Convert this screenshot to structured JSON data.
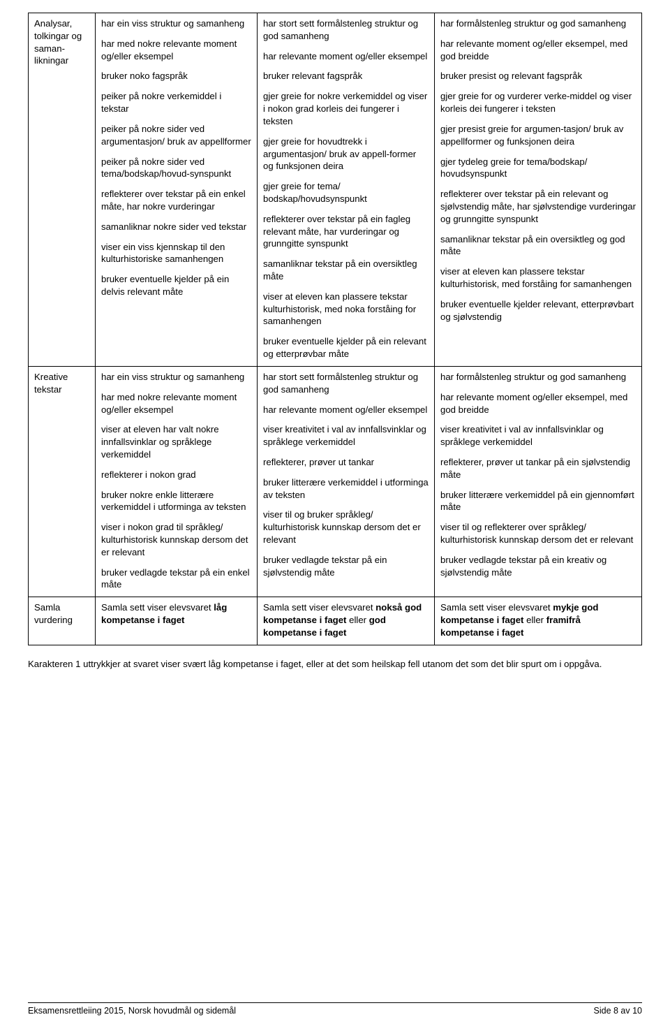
{
  "rows": [
    {
      "label": "Analysar, tolkingar og saman-likningar",
      "col1": [
        "har ein viss struktur og samanheng",
        "har med nokre relevante moment og/eller eksempel",
        "bruker noko fagspråk",
        "peiker på nokre verkemiddel i tekstar",
        "peiker på nokre sider ved argumentasjon/ bruk av appellformer",
        "peiker på nokre sider ved tema/bodskap/hovud-synspunkt",
        "reflekterer over tekstar på ein enkel måte, har nokre vurderingar",
        "samanliknar nokre sider ved tekstar",
        "viser ein viss kjennskap til den kulturhistoriske samanhengen",
        "bruker eventuelle kjelder på ein delvis relevant måte"
      ],
      "col2": [
        "har stort sett formålstenleg struktur og god samanheng",
        "har relevante moment og/eller eksempel",
        "bruker relevant fagspråk",
        "gjer greie for nokre verkemiddel og viser i  nokon grad korleis dei fungerer i teksten",
        "gjer greie for hovudtrekk i argumentasjon/ bruk av appell-former og funksjonen deira",
        "gjer greie for tema/ bodskap/hovudsynspunkt",
        "reflekterer over tekstar på ein fagleg relevant måte, har vurderingar og grunngitte synspunkt",
        "samanliknar tekstar på ein oversiktleg måte",
        "viser at eleven kan plassere tekstar kulturhistorisk, med noka forståing for samanhengen",
        "bruker eventuelle kjelder på ein relevant og etterprøvbar  måte"
      ],
      "col3": [
        "har formålstenleg struktur og god samanheng",
        "har relevante moment og/eller eksempel, med god breidde",
        "bruker presist og relevant fagspråk",
        "gjer greie for og vurderer verke-middel og viser korleis dei fungerer i teksten",
        "gjer presist greie for argumen-tasjon/ bruk av appellformer og funksjonen deira",
        "gjer tydeleg greie for tema/bodskap/ hovudsynspunkt",
        "reflekterer over tekstar på ein relevant og sjølvstendig måte, har sjølvstendige vurderingar og grunngitte synspunkt",
        "samanliknar tekstar på ein oversiktleg og god måte",
        "viser at eleven kan plassere tekstar kulturhistorisk, med forståing for samanhengen",
        "bruker eventuelle kjelder relevant, etterprøvbart og sjølvstendig"
      ]
    },
    {
      "label": "Kreative tekstar",
      "col1": [
        "har ein viss struktur og samanheng",
        "har med nokre relevante moment og/eller eksempel",
        "viser at eleven har valt nokre innfallsvinklar og språklege verkemiddel",
        "reflekterer i nokon grad",
        "bruker nokre enkle litterære verkemiddel i utforminga av teksten",
        "viser i nokon grad til språkleg/ kulturhistorisk kunnskap dersom det er relevant",
        "bruker vedlagde tekstar på ein enkel måte"
      ],
      "col2": [
        "har stort sett formålstenleg struktur og god samanheng",
        "har relevante moment og/eller eksempel",
        "viser kreativitet i val av innfallsvinklar og språklege verkemiddel",
        "reflekterer, prøver ut tankar",
        "bruker litterære verkemiddel i utforminga av teksten",
        "viser til og bruker språkleg/ kulturhistorisk kunnskap dersom det er relevant",
        "bruker vedlagde tekstar på ein sjølvstendig måte"
      ],
      "col3": [
        "har formålstenleg struktur og god samanheng",
        "har relevante moment og/eller eksempel, med god breidde",
        "viser kreativitet i val av innfallsvinklar og språklege verkemiddel",
        "reflekterer, prøver ut tankar på ein sjølvstendig måte",
        "bruker litterære verkemiddel på ein gjennomført måte",
        "viser til og reflekterer over språkleg/ kulturhistorisk kunnskap dersom det er relevant",
        "bruker vedlagde tekstar på ein kreativ og sjølvstendig måte"
      ]
    }
  ],
  "samla": {
    "label": "Samla vurdering",
    "col1_pre": "Samla sett viser elevsvaret ",
    "col1_b": "låg kompetanse i faget",
    "col2_pre": "Samla sett viser elevsvaret ",
    "col2_b1": "nokså god kompetanse i faget",
    "col2_mid": " eller ",
    "col2_b2": "god kompetanse i faget",
    "col3_pre": "Samla sett viser elevsvaret ",
    "col3_b1": "mykje god kompetanse i faget",
    "col3_mid": " eller ",
    "col3_b2": "framifrå kompetanse i faget"
  },
  "note": "Karakteren 1 uttrykkjer at svaret viser svært låg kompetanse i faget, eller at det som heilskap fell utanom det som det blir spurt om i oppgåva.",
  "footer_left": "Eksamensrettleiing 2015, Norsk hovudmål og sidemål",
  "footer_right": "Side 8 av 10"
}
